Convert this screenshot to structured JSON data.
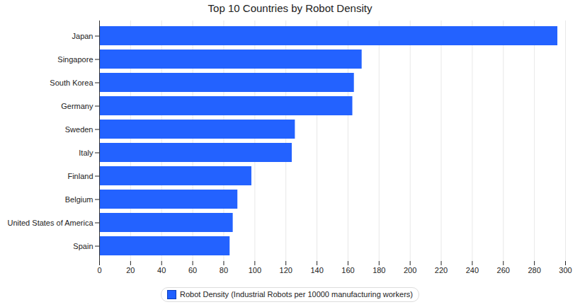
{
  "chart_data": {
    "type": "bar",
    "title": "Top 10 Countries by Robot Density",
    "orientation": "horizontal",
    "categories": [
      "Japan",
      "Singapore",
      "South Korea",
      "Germany",
      "Sweden",
      "Italy",
      "Finland",
      "Belgium",
      "United States of America",
      "Spain"
    ],
    "series": [
      {
        "name": "Robot Density (Industrial Robots per 10000 manufacturing workers)",
        "color": "#1f5fff",
        "values": [
          295,
          169,
          164,
          163,
          126,
          124,
          98,
          89,
          86,
          84
        ]
      }
    ],
    "xlim": [
      0,
      300
    ],
    "xticks": [
      0,
      20,
      40,
      60,
      80,
      100,
      120,
      140,
      160,
      180,
      200,
      220,
      240,
      260,
      280,
      300
    ],
    "grid": true,
    "legend": "bottom"
  }
}
